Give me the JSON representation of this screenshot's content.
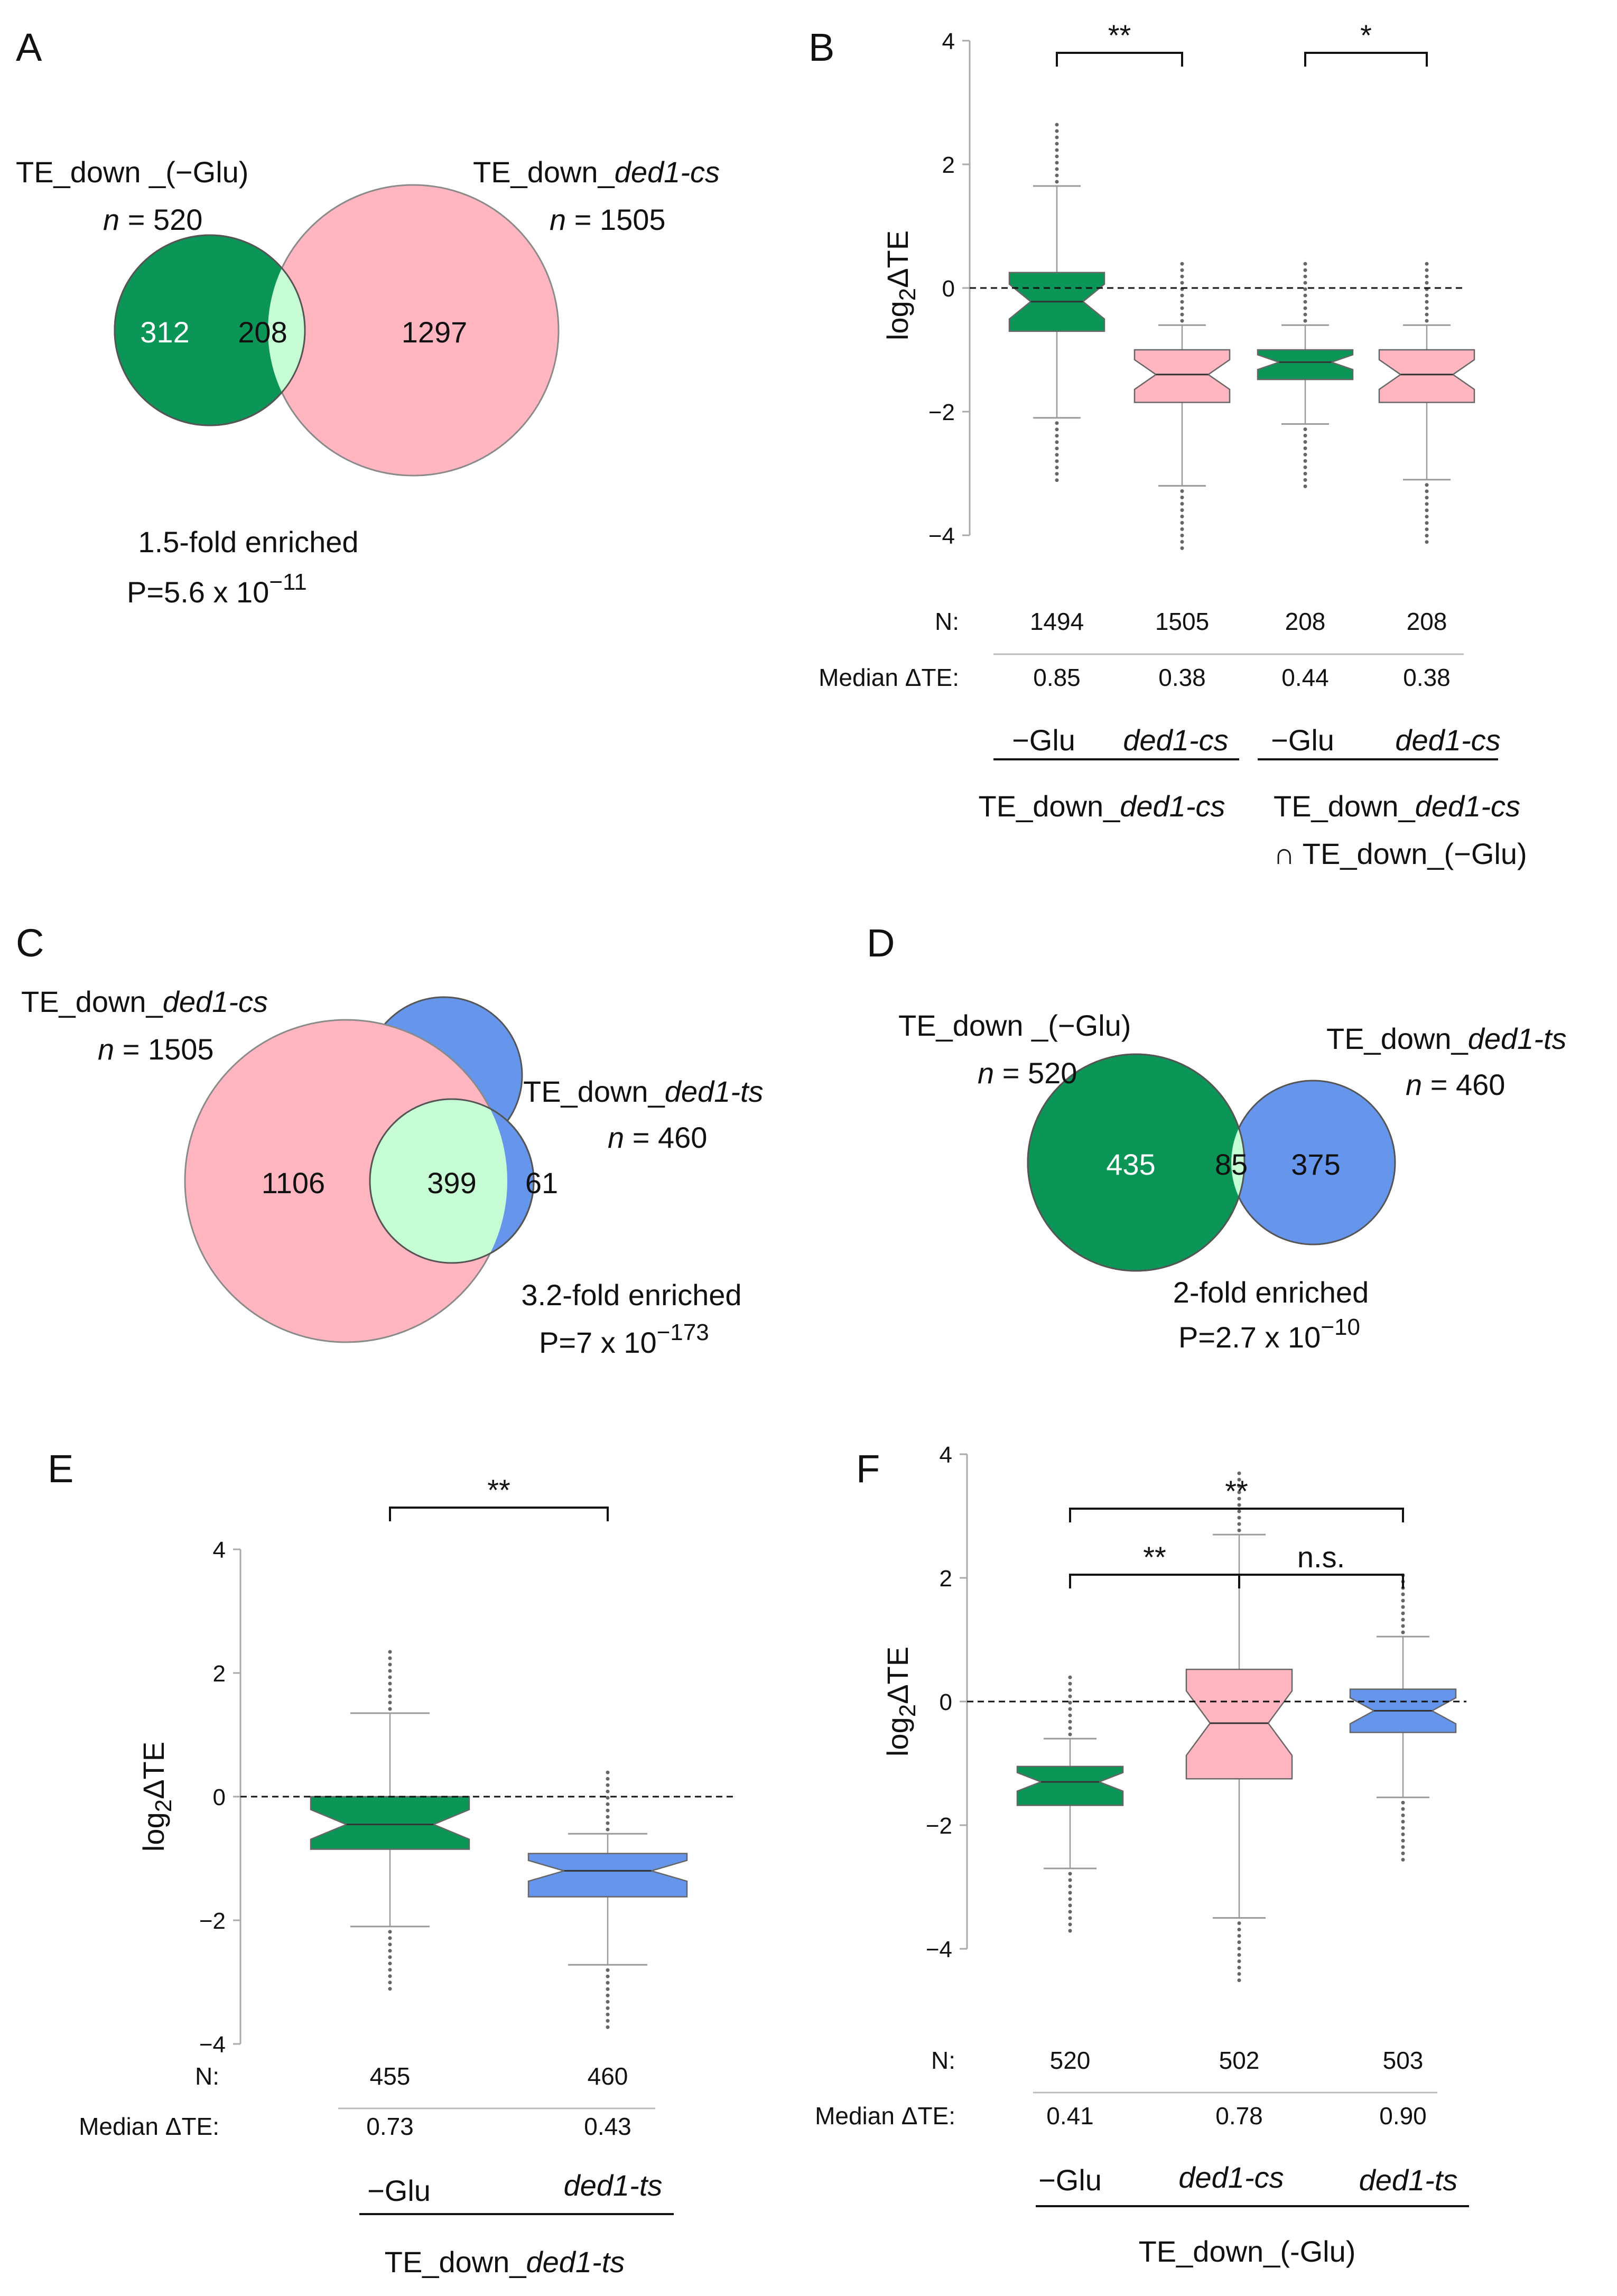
{
  "colors": {
    "green": "#0b9657",
    "pink": "#ffb6c1",
    "lightgreen": "#c6fdd5",
    "blue": "#6695ec"
  },
  "panels": {
    "A": {
      "label": "A",
      "left_title": "TE_down _(−Glu)",
      "left_n_prefix": "n",
      "left_n_suffix": " = 520",
      "right_title_prefix": "TE_down_",
      "right_title_italic": "ded1-cs",
      "right_n_prefix": "n",
      "right_n_suffix": " = 1505",
      "left_only": "312",
      "overlap": "208",
      "right_only": "1297",
      "enrichment": "1.5-fold enriched",
      "p_base": "P=5.6 x 10",
      "p_exp": "−11"
    },
    "B": {
      "label": "B",
      "ylabel_main": "log",
      "ylabel_sub": "2",
      "ylabel_tail": "ΔTE",
      "yticks": [
        "4",
        "2",
        "0",
        "−2",
        "−4"
      ],
      "sig_1": "**",
      "sig_2": "*",
      "n_label": "N:",
      "n_values": [
        "1494",
        "1505",
        "208",
        "208"
      ],
      "median_label": "Median ΔTE:",
      "median_values": [
        "0.85",
        "0.38",
        "0.44",
        "0.38"
      ],
      "cond_1": "−Glu",
      "cond_2": "ded1-cs",
      "cond_3": "−Glu",
      "cond_4": "ded1-cs",
      "group1_prefix": "TE_down_",
      "group1_italic": "ded1-cs",
      "group2_prefix": "TE_down_",
      "group2_italic": "ded1-cs",
      "group2_line2": "∩ TE_down_(−Glu)"
    },
    "C": {
      "label": "C",
      "left_title_prefix": "TE_down_",
      "left_title_italic": "ded1-cs",
      "left_n_prefix": "n",
      "left_n_suffix": " = 1505",
      "right_title_prefix": "TE_down_",
      "right_title_italic": "ded1-ts",
      "right_n_prefix": "n",
      "right_n_suffix": " = 460",
      "left_only": "1106",
      "overlap": "399",
      "right_only": "61",
      "enrichment": "3.2-fold enriched",
      "p_base": "P=7 x 10",
      "p_exp": "−173"
    },
    "D": {
      "label": "D",
      "left_title": "TE_down _(−Glu)",
      "left_n_prefix": "n",
      "left_n_suffix": " = 520",
      "right_title_prefix": "TE_down_",
      "right_title_italic": "ded1-ts",
      "right_n_prefix": "n",
      "right_n_suffix": " = 460",
      "left_only": "435",
      "overlap": "85",
      "right_only": "375",
      "enrichment": "2-fold enriched",
      "p_base": "P=2.7 x 10",
      "p_exp": "−10"
    },
    "E": {
      "label": "E",
      "ylabel_main": "log",
      "ylabel_sub": "2",
      "ylabel_tail": "ΔTE",
      "yticks": [
        "4",
        "2",
        "0",
        "−2",
        "−4"
      ],
      "sig_1": "**",
      "n_label": "N:",
      "n_values": [
        "455",
        "460"
      ],
      "median_label": "Median ΔTE:",
      "median_values": [
        "0.73",
        "0.43"
      ],
      "cond_1": "−Glu",
      "cond_2": "ded1-ts",
      "group1_prefix": "TE_down_",
      "group1_italic": "ded1-ts"
    },
    "F": {
      "label": "F",
      "ylabel_main": "log",
      "ylabel_sub": "2",
      "ylabel_tail": "ΔTE",
      "yticks": [
        "4",
        "2",
        "0",
        "−2",
        "−4"
      ],
      "sig_1": "**",
      "sig_2": "**",
      "sig_3": "n.s.",
      "n_label": "N:",
      "n_values": [
        "520",
        "502",
        "503"
      ],
      "median_label": "Median ΔTE:",
      "median_values": [
        "0.41",
        "0.78",
        "0.90"
      ],
      "cond_1": "−Glu",
      "cond_2": "ded1-cs",
      "cond_3": "ded1-ts",
      "group1": "TE_down_(-Glu)"
    }
  },
  "chart_data": [
    {
      "type": "box",
      "panel": "B",
      "categories": [
        "−Glu",
        "ded1-cs",
        "−Glu",
        "ded1-cs"
      ],
      "groups": [
        "TE_down_ded1-cs",
        "TE_down_ded1-cs ∩ TE_down_(−Glu)"
      ],
      "ylabel": "log2ΔTE",
      "ylim": [
        -4,
        4
      ],
      "reference_line": 0,
      "boxes": [
        {
          "q1": -0.7,
          "median": -0.22,
          "q3": 0.25,
          "whisker_low": -2.1,
          "whisker_high": 1.65,
          "color": "green"
        },
        {
          "q1": -1.85,
          "median": -1.4,
          "q3": -1.0,
          "whisker_low": -3.2,
          "whisker_high": -0.6,
          "color": "pink"
        },
        {
          "q1": -1.48,
          "median": -1.2,
          "q3": -1.0,
          "whisker_low": -2.2,
          "whisker_high": -0.6,
          "color": "green"
        },
        {
          "q1": -1.85,
          "median": -1.4,
          "q3": -1.0,
          "whisker_low": -3.1,
          "whisker_high": -0.6,
          "color": "pink"
        }
      ],
      "n": [
        1494,
        1505,
        208,
        208
      ],
      "median_delta_te": [
        0.85,
        0.38,
        0.44,
        0.38
      ],
      "significance": [
        {
          "between": [
            0,
            1
          ],
          "label": "**"
        },
        {
          "between": [
            2,
            3
          ],
          "label": "*"
        }
      ]
    },
    {
      "type": "box",
      "panel": "E",
      "categories": [
        "−Glu",
        "ded1-ts"
      ],
      "groups": [
        "TE_down_ded1-ts"
      ],
      "ylabel": "log2ΔTE",
      "ylim": [
        -4,
        4
      ],
      "reference_line": 0,
      "boxes": [
        {
          "q1": -0.85,
          "median": -0.45,
          "q3": 0.0,
          "whisker_low": -2.1,
          "whisker_high": 1.35,
          "color": "green"
        },
        {
          "q1": -1.62,
          "median": -1.2,
          "q3": -0.92,
          "whisker_low": -2.72,
          "whisker_high": -0.6,
          "color": "blue"
        }
      ],
      "n": [
        455,
        460
      ],
      "median_delta_te": [
        0.73,
        0.43
      ],
      "significance": [
        {
          "between": [
            0,
            1
          ],
          "label": "**"
        }
      ]
    },
    {
      "type": "box",
      "panel": "F",
      "categories": [
        "−Glu",
        "ded1-cs",
        "ded1-ts"
      ],
      "groups": [
        "TE_down_(-Glu)"
      ],
      "ylabel": "log2ΔTE",
      "ylim": [
        -4,
        4
      ],
      "reference_line": 0,
      "boxes": [
        {
          "q1": -1.68,
          "median": -1.3,
          "q3": -1.05,
          "whisker_low": -2.7,
          "whisker_high": -0.6,
          "color": "green"
        },
        {
          "q1": -1.25,
          "median": -0.35,
          "q3": 0.52,
          "whisker_low": -3.5,
          "whisker_high": 2.7,
          "color": "pink"
        },
        {
          "q1": -0.5,
          "median": -0.15,
          "q3": 0.2,
          "whisker_low": -1.55,
          "whisker_high": 1.05,
          "color": "blue"
        }
      ],
      "n": [
        520,
        502,
        503
      ],
      "median_delta_te": [
        0.41,
        0.78,
        0.9
      ],
      "significance": [
        {
          "between": [
            0,
            2
          ],
          "label": "**"
        },
        {
          "between": [
            0,
            1
          ],
          "label": "**"
        },
        {
          "between": [
            1,
            2
          ],
          "label": "n.s."
        }
      ]
    }
  ]
}
